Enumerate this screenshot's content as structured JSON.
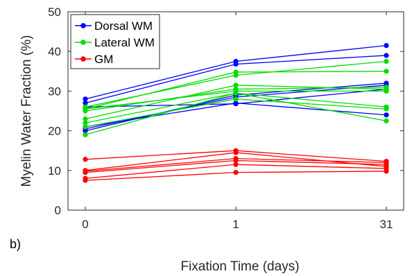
{
  "panel_label": "b)",
  "chart_data": {
    "type": "line",
    "title": "",
    "xlabel": "Fixation Time (days)",
    "ylabel": "Myelin Water Fraction (%)",
    "categories": [
      "0",
      "1",
      "31"
    ],
    "ylim": [
      0,
      50
    ],
    "yticks": [
      0,
      10,
      20,
      30,
      40,
      50
    ],
    "grid": false,
    "legend_position": "top-left",
    "groups": [
      {
        "name": "Dorsal WM",
        "color": "#0000ff",
        "lines": [
          [
            28.0,
            37.5,
            41.5
          ],
          [
            27.0,
            36.8,
            39.0
          ],
          [
            20.5,
            28.5,
            31.5
          ],
          [
            20.0,
            29.0,
            32.0
          ],
          [
            21.0,
            27.0,
            24.0
          ],
          [
            26.0,
            26.8,
            30.5
          ]
        ]
      },
      {
        "name": "Lateral WM",
        "color": "#00dd00",
        "lines": [
          [
            26.0,
            34.0,
            37.5
          ],
          [
            25.5,
            34.8,
            35.0
          ],
          [
            25.0,
            30.5,
            31.0
          ],
          [
            23.0,
            31.5,
            30.5
          ],
          [
            22.0,
            29.5,
            26.0
          ],
          [
            21.0,
            28.0,
            25.5
          ],
          [
            19.0,
            29.5,
            22.5
          ],
          [
            25.5,
            30.0,
            30.0
          ]
        ]
      },
      {
        "name": "GM",
        "color": "#ff0000",
        "lines": [
          [
            12.8,
            15.0,
            12.3
          ],
          [
            10.0,
            14.5,
            11.0
          ],
          [
            9.8,
            13.0,
            12.0
          ],
          [
            9.5,
            12.5,
            11.5
          ],
          [
            8.0,
            11.5,
            10.5
          ],
          [
            7.5,
            9.5,
            9.8
          ]
        ]
      }
    ]
  }
}
